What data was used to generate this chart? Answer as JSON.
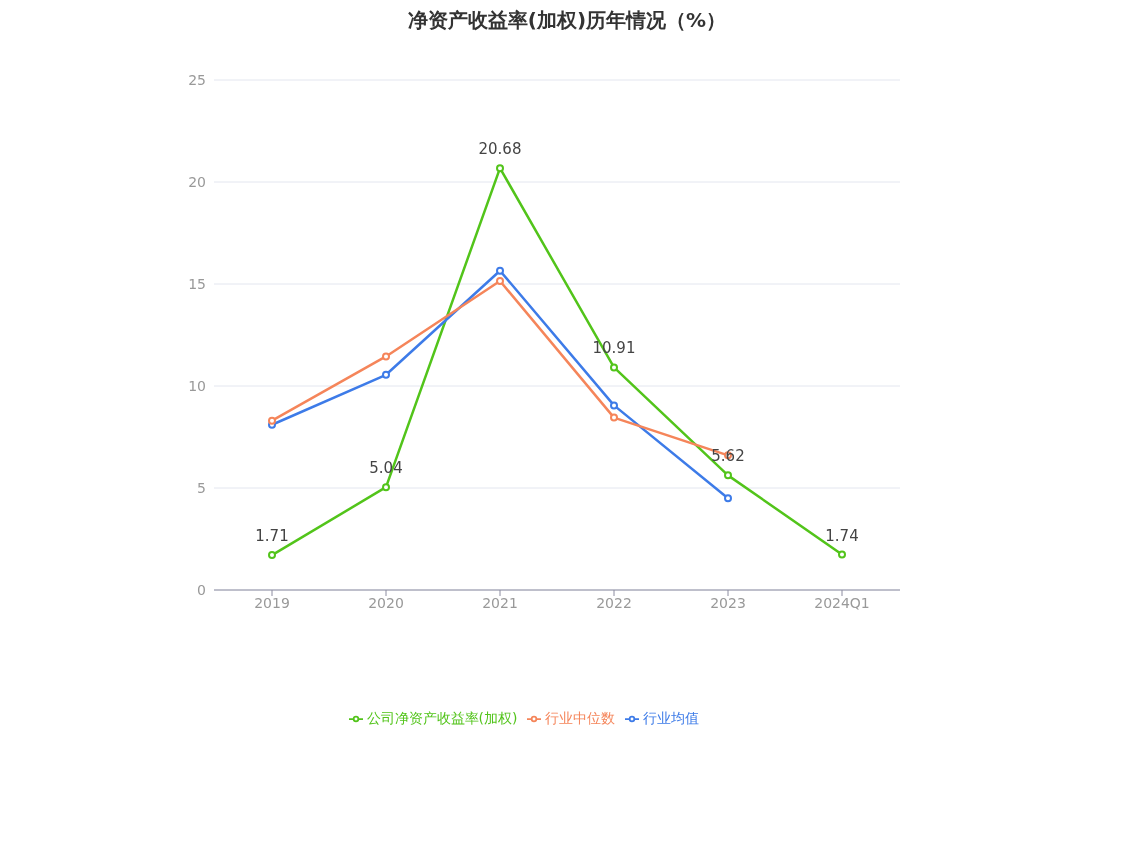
{
  "chart_data": {
    "type": "line",
    "title": "净资产收益率(加权)历年情况（%）",
    "categories": [
      "2019",
      "2020",
      "2021",
      "2022",
      "2023",
      "2024Q1"
    ],
    "series": [
      {
        "name": "公司净资产收益率(加权)",
        "color": "#52c41a",
        "values": [
          1.71,
          5.04,
          20.68,
          10.91,
          5.62,
          1.74
        ],
        "value_labels": [
          "1.71",
          "5.04",
          "20.68",
          "10.91",
          "5.62",
          "1.74"
        ]
      },
      {
        "name": "行业均值",
        "color": "#3d7be8",
        "values": [
          8.1,
          10.55,
          15.65,
          9.05,
          4.5,
          null
        ]
      },
      {
        "name": "行业中位数",
        "color": "#f5855a",
        "values": [
          8.3,
          11.45,
          15.15,
          8.45,
          6.6,
          null
        ]
      }
    ],
    "ylim": [
      0,
      25
    ],
    "yticks": [
      0,
      5,
      10,
      15,
      20,
      25
    ],
    "grid": "y",
    "legend": "bottom",
    "marker": "circle",
    "line_style": "solid"
  }
}
